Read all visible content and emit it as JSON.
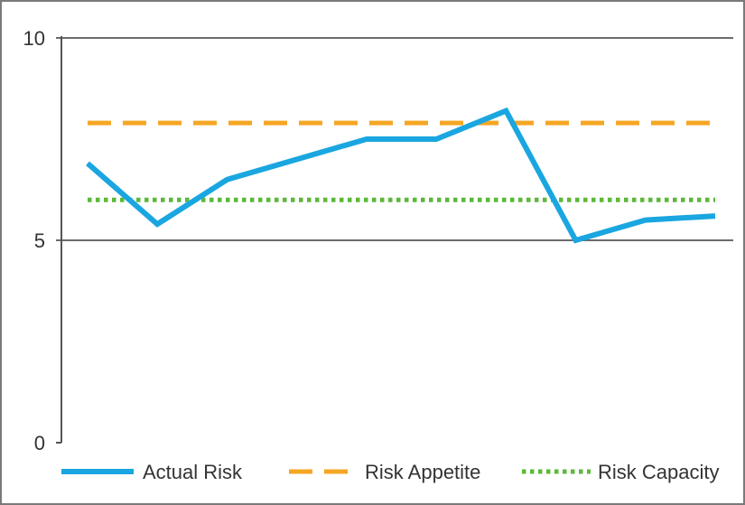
{
  "chart_data": {
    "type": "line",
    "title": "",
    "xlabel": "",
    "ylabel": "",
    "ylim": [
      0,
      10
    ],
    "yticks": [
      0,
      5,
      10
    ],
    "grid": "horizontal",
    "legend_position": "bottom",
    "x": [
      1,
      2,
      3,
      4,
      5,
      6,
      7,
      8,
      9,
      10
    ],
    "series": [
      {
        "name": "Actual Risk",
        "style": "solid",
        "color": "#1aa6e0",
        "values": [
          6.9,
          5.4,
          6.5,
          7.0,
          7.5,
          7.5,
          8.2,
          5.0,
          5.5,
          5.6
        ]
      },
      {
        "name": "Risk Appetite",
        "style": "dashed",
        "color": "#f5a623",
        "values": [
          7.9,
          7.9,
          7.9,
          7.9,
          7.9,
          7.9,
          7.9,
          7.9,
          7.9,
          7.9
        ]
      },
      {
        "name": "Risk Capacity",
        "style": "dotted",
        "color": "#5cb83a",
        "values": [
          6.0,
          6.0,
          6.0,
          6.0,
          6.0,
          6.0,
          6.0,
          6.0,
          6.0,
          6.0
        ]
      }
    ]
  }
}
